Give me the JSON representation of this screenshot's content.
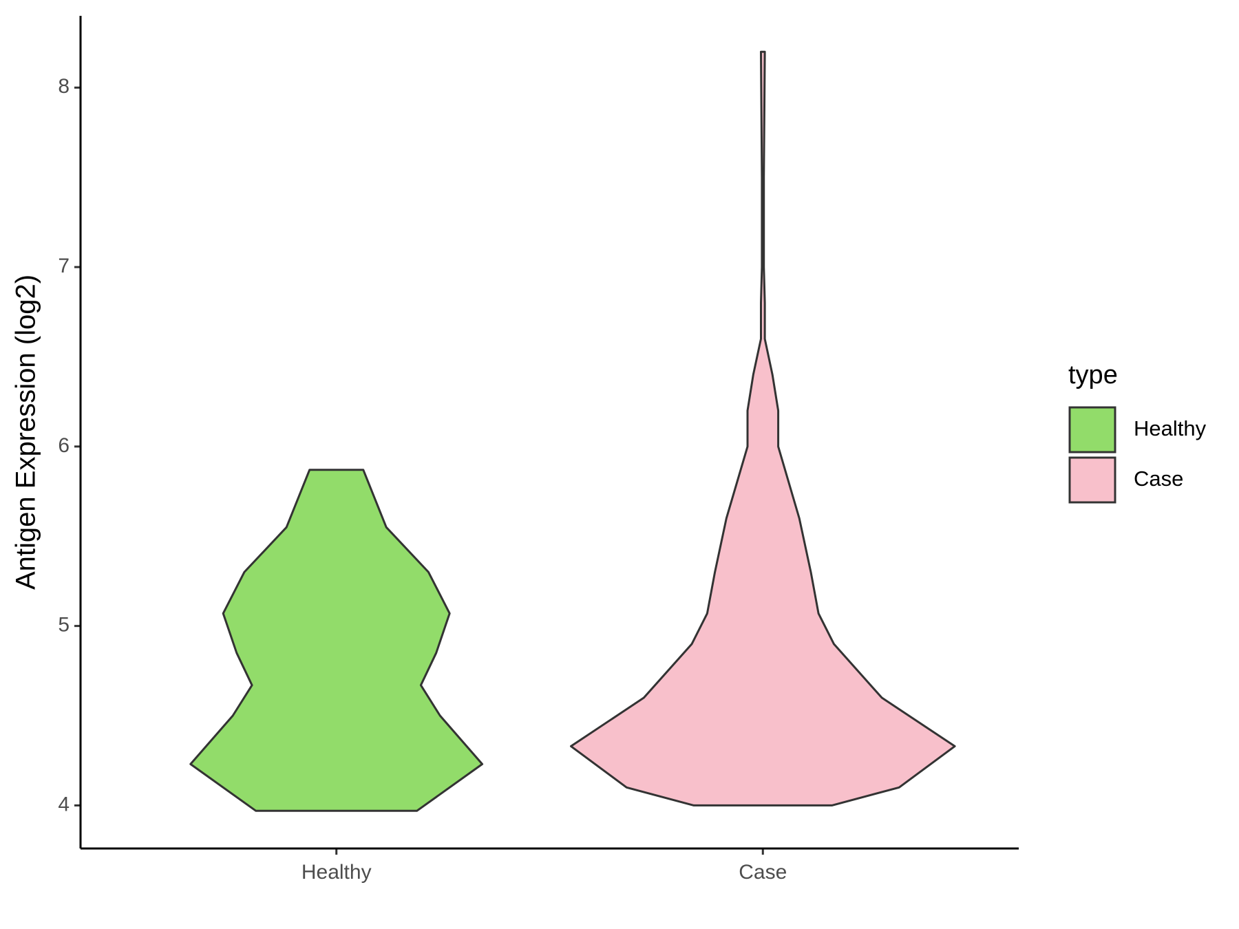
{
  "chart_data": {
    "type": "violin",
    "y_label": "Antigen Expression (log2)",
    "categories": [
      "Healthy",
      "Case"
    ],
    "legend_title": "type",
    "legend_position": "right",
    "ylim": [
      3.76,
      8.4
    ],
    "yticks": [
      4,
      5,
      6,
      7,
      8
    ],
    "series": [
      {
        "name": "Healthy",
        "color": "#92dc6a",
        "y": [
          3.97,
          4.23,
          4.5,
          4.67,
          4.85,
          5.07,
          5.3,
          5.55,
          5.87
        ],
        "density": [
          0.42,
          0.76,
          0.54,
          0.44,
          0.52,
          0.59,
          0.48,
          0.26,
          0.14
        ]
      },
      {
        "name": "Case",
        "color": "#f8c0cb",
        "y": [
          4.0,
          4.1,
          4.33,
          4.6,
          4.9,
          5.07,
          5.3,
          5.6,
          6.0,
          6.2,
          6.4,
          6.6,
          6.8,
          7.0,
          7.5,
          8.2
        ],
        "density": [
          0.36,
          0.71,
          1.0,
          0.62,
          0.37,
          0.29,
          0.25,
          0.19,
          0.08,
          0.08,
          0.05,
          0.01,
          0.01,
          0.005,
          0.005,
          0.01
        ]
      }
    ]
  }
}
